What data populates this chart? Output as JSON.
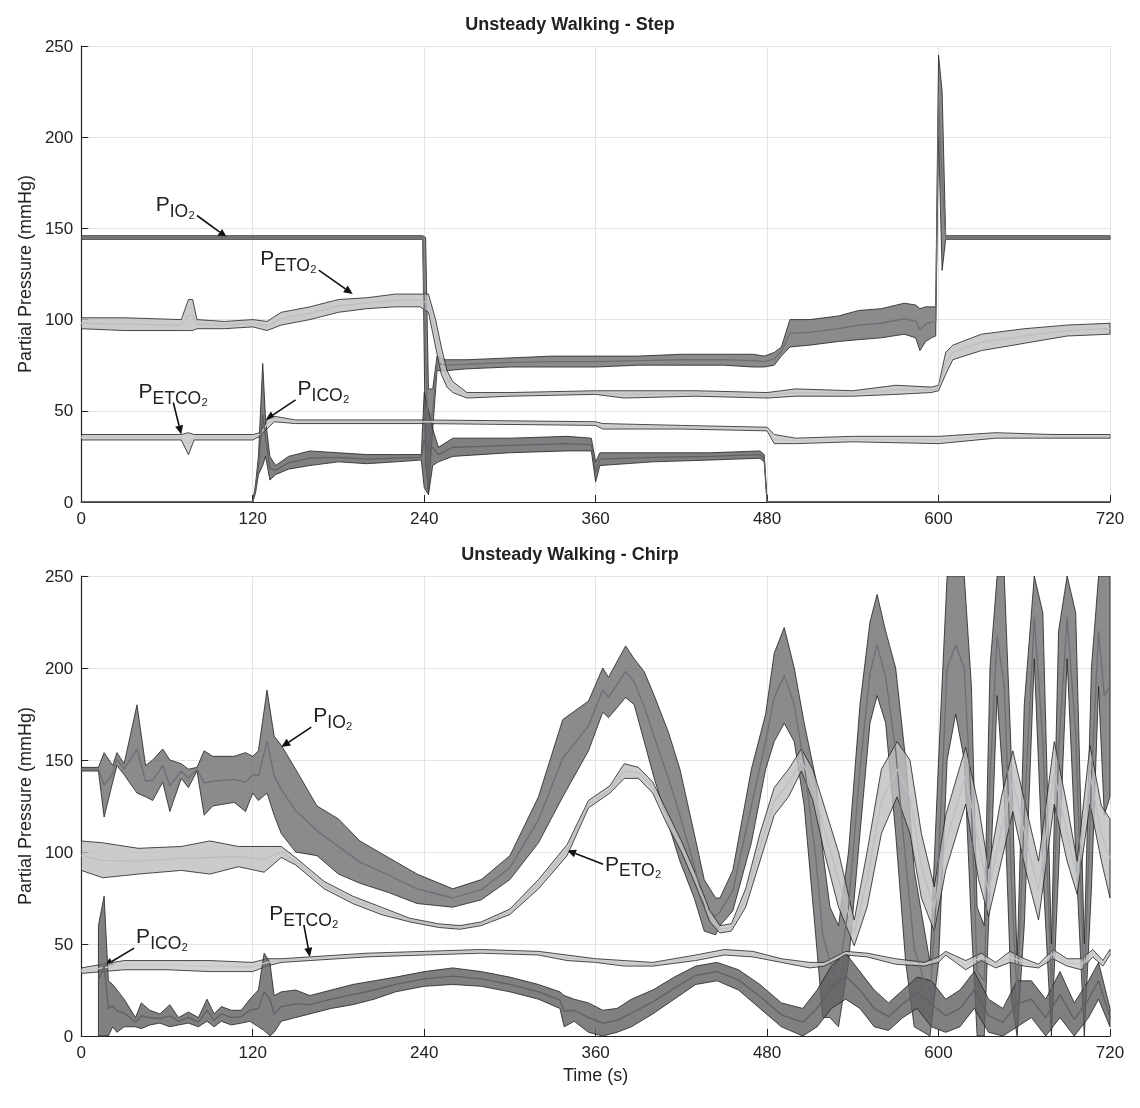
{
  "chart_data": [
    {
      "type": "line",
      "title": "Unsteady Walking - Step",
      "ylabel": "Partial Pressure (mmHg)",
      "xlim": [
        0,
        720
      ],
      "ylim": [
        0,
        250
      ],
      "xticks": [
        0,
        120,
        240,
        360,
        480,
        600,
        720
      ],
      "yticks": [
        0,
        50,
        100,
        150,
        200,
        250
      ],
      "grid": true,
      "annotations": [
        {
          "text": "P$_{IO₂}$",
          "x": 102,
          "y": 145
        },
        {
          "text": "P$_{ETO₂}$",
          "x": 190,
          "y": 114
        },
        {
          "text": "P$_{ETCO₂}$",
          "x": 70,
          "y": 37
        },
        {
          "text": "P$_{ICO₂}$",
          "x": 129,
          "y": 45
        }
      ],
      "series": [
        {
          "color": "#6d6e71",
          "x": [
            0,
            239,
            241,
            243,
            246,
            249,
            255,
            270,
            300,
            330,
            360,
            390,
            420,
            450,
            470,
            478,
            485,
            490,
            496,
            510,
            530,
            544,
            560,
            576,
            584,
            587,
            591,
            595,
            598,
            600,
            602.5,
            605,
            720
          ],
          "values": [
            145,
            145,
            82.5,
            33.5,
            51,
            76,
            75,
            75.5,
            76.5,
            77,
            77,
            77.5,
            78,
            78,
            77.5,
            77,
            78.5,
            82.5,
            92.5,
            93,
            95,
            97,
            98,
            100.5,
            99,
            94.5,
            97.5,
            98.5,
            99,
            222.5,
            176,
            145,
            145
          ],
          "lower": [
            144,
            144,
            20,
            5,
            40,
            72,
            72,
            73,
            74,
            74,
            74,
            75,
            75,
            75,
            74,
            74,
            75,
            80,
            85,
            86,
            88,
            89,
            90,
            92,
            90,
            83,
            88,
            90,
            91,
            200,
            127,
            144,
            144
          ],
          "upper": [
            146,
            146,
            145,
            62,
            62,
            80,
            78,
            78,
            79,
            80,
            80,
            80,
            81,
            81,
            81,
            80,
            82,
            85,
            100,
            100,
            102,
            105,
            106,
            109,
            108,
            106,
            107,
            107,
            107,
            245,
            225,
            146,
            146
          ]
        },
        {
          "color": "#bcbec0",
          "x": [
            0,
            30,
            70,
            75,
            78,
            81,
            100,
            120,
            130,
            140,
            160,
            180,
            200,
            220,
            237,
            243,
            248,
            252,
            256,
            260,
            270,
            300,
            360,
            380,
            430,
            480,
            500,
            540,
            570,
            595,
            600,
            605,
            610,
            630,
            660,
            690,
            720
          ],
          "values": [
            98,
            97.5,
            97,
            102.5,
            102.5,
            97.5,
            97,
            98,
            96.5,
            100.5,
            103.5,
            107.5,
            109,
            110.5,
            110.5,
            109,
            92.5,
            77.5,
            67.5,
            63,
            58.5,
            59,
            60,
            59,
            59.5,
            58.5,
            60,
            59.5,
            61.5,
            61.5,
            62.5,
            76,
            82,
            87.5,
            91,
            94,
            95
          ],
          "lower": [
            95,
            94,
            94,
            94,
            94,
            95,
            95,
            96,
            94,
            97,
            100,
            104,
            106,
            107,
            107,
            104,
            85,
            70,
            63,
            60,
            57,
            58,
            59,
            57,
            58,
            57,
            58,
            58,
            59,
            60,
            61,
            70,
            78,
            83,
            87,
            91,
            92
          ],
          "upper": [
            101,
            101,
            100,
            111,
            111,
            100,
            99,
            100,
            99,
            104,
            107,
            111,
            112,
            114,
            114,
            114,
            100,
            85,
            72,
            66,
            60,
            60,
            61,
            61,
            61,
            60,
            62,
            61,
            64,
            63,
            64,
            82,
            86,
            92,
            95,
            97,
            98
          ]
        },
        {
          "color": "#c4c6c8",
          "x": [
            0,
            70,
            75,
            79,
            120,
            125,
            130,
            135,
            150,
            240,
            360,
            365,
            420,
            480,
            485,
            500,
            540,
            600,
            640,
            680,
            720
          ],
          "values": [
            35.5,
            35.5,
            32,
            35.5,
            35.5,
            37,
            42.5,
            45.5,
            44,
            44,
            43,
            41.5,
            41,
            40,
            34.5,
            33.5,
            34.5,
            34,
            36.5,
            36,
            36
          ],
          "lower": [
            34,
            34,
            26,
            34,
            34,
            36,
            40,
            44,
            43,
            43,
            42,
            40,
            40,
            39,
            32,
            32,
            33,
            32,
            35,
            35,
            35
          ],
          "upper": [
            37,
            37,
            38,
            37,
            37,
            38,
            45,
            47,
            45,
            45,
            44,
            43,
            42,
            41,
            37,
            35,
            36,
            36,
            38,
            37,
            37
          ]
        },
        {
          "color": "#5f6063",
          "x": [
            0,
            120,
            122,
            124,
            127,
            129,
            132,
            136,
            145,
            160,
            180,
            200,
            220,
            238,
            240,
            243,
            246,
            250,
            260,
            300,
            340,
            357,
            360,
            363,
            400,
            440,
            475,
            478,
            480,
            720
          ],
          "values": [
            0,
            0,
            7.5,
            20,
            48,
            35,
            18.5,
            17.5,
            21.5,
            24,
            24.5,
            23.5,
            24,
            24.5,
            34,
            27,
            30,
            26,
            30,
            31,
            32,
            31.5,
            16.5,
            23.5,
            24.5,
            25,
            26,
            24,
            0,
            0
          ],
          "lower": [
            0,
            0,
            5,
            15,
            20,
            25,
            12,
            15,
            18,
            20,
            22,
            21,
            22,
            23,
            8,
            4,
            20,
            22,
            25,
            27,
            28,
            28,
            11,
            20,
            22,
            23,
            24,
            22,
            0,
            0
          ],
          "upper": [
            0,
            0,
            10,
            25,
            76,
            45,
            25,
            20,
            25,
            28,
            27,
            26,
            26,
            26,
            60,
            50,
            40,
            30,
            35,
            35,
            36,
            35,
            22,
            27,
            27,
            27,
            28,
            26,
            0,
            0
          ]
        }
      ]
    },
    {
      "type": "line",
      "title": "Unsteady Walking - Chirp",
      "xlabel": "Time (s)",
      "ylabel": "Partial Pressure (mmHg)",
      "xlim": [
        0,
        720
      ],
      "ylim": [
        0,
        250
      ],
      "xticks": [
        0,
        120,
        240,
        360,
        480,
        600,
        720
      ],
      "yticks": [
        0,
        50,
        100,
        150,
        200,
        250
      ],
      "grid": true,
      "annotations": [
        {
          "text": "P$_{IO₂}$",
          "x": 140,
          "y": 157
        },
        {
          "text": "P$_{ICO₂}$",
          "x": 16,
          "y": 38
        },
        {
          "text": "P$_{ETCO₂}$",
          "x": 160,
          "y": 43
        },
        {
          "text": "P$_{ETO₂}$",
          "x": 340,
          "y": 101
        }
      ],
      "series": [
        {
          "color": "#6d6e71",
          "x": [
            0,
            12,
            16,
            22,
            25,
            30,
            39,
            45,
            50,
            57,
            62,
            70,
            75,
            81,
            86,
            92,
            107,
            115,
            120,
            124,
            130,
            135,
            140,
            150,
            165,
            180,
            195,
            215,
            235,
            260,
            280,
            300,
            320,
            337,
            355,
            365,
            369,
            381,
            387,
            394,
            401,
            411,
            419,
            429,
            436,
            444,
            447,
            456,
            469,
            479,
            485,
            492,
            499,
            506,
            514,
            519,
            524,
            530,
            537,
            545,
            552,
            557,
            563,
            570,
            577,
            583,
            594,
            600,
            606,
            612,
            618,
            623,
            627,
            632,
            636,
            641,
            646,
            651,
            655,
            660,
            667,
            673,
            679,
            684,
            690,
            696,
            702,
            707,
            712,
            716,
            720
          ],
          "values": [
            145,
            145,
            136.5,
            142.5,
            150.5,
            145,
            156,
            138.5,
            139,
            147,
            136,
            144,
            140,
            145,
            137.5,
            138.5,
            139.5,
            138,
            142,
            141.5,
            160,
            141.5,
            134,
            122.5,
            111.5,
            103,
            94.5,
            87.5,
            80,
            75,
            79.5,
            91.5,
            117.5,
            151,
            168.5,
            188,
            184,
            198,
            192.5,
            179,
            162.5,
            140,
            120,
            92.5,
            71,
            65,
            67.5,
            79,
            125,
            160,
            184,
            196,
            180,
            147.5,
            97.5,
            55,
            40,
            32.5,
            70,
            145,
            197.5,
            212.5,
            195,
            155,
            95,
            47.5,
            20,
            95,
            200,
            212.5,
            200,
            125,
            35,
            30,
            140,
            217.5,
            190,
            85,
            20,
            120,
            227.5,
            160,
            25,
            155,
            227.5,
            165,
            25,
            140,
            220,
            185,
            190
          ],
          "lower": [
            144,
            144,
            119,
            138,
            147,
            142,
            132,
            130,
            128,
            138,
            122,
            140,
            135,
            144,
            120,
            125,
            127,
            122,
            132,
            128,
            132,
            120,
            110,
            100,
            98,
            88,
            83,
            78,
            72,
            70,
            74,
            85,
            105,
            130,
            155,
            176,
            173,
            184,
            180,
            160,
            140,
            115,
            95,
            75,
            57,
            55,
            60,
            68,
            105,
            145,
            160,
            170,
            160,
            125,
            55,
            10,
            10,
            5,
            40,
            110,
            170,
            185,
            170,
            110,
            40,
            5,
            0,
            40,
            150,
            175,
            150,
            60,
            0,
            0,
            80,
            185,
            130,
            20,
            0,
            60,
            205,
            90,
            0,
            90,
            205,
            100,
            0,
            80,
            190,
            120,
            130
          ],
          "upper": [
            146,
            146,
            154,
            147,
            154,
            148,
            180,
            147,
            150,
            156,
            150,
            148,
            145,
            146,
            155,
            152,
            152,
            154,
            152,
            155,
            188,
            163,
            158,
            145,
            125,
            118,
            106,
            97,
            88,
            80,
            85,
            98,
            130,
            172,
            182,
            200,
            195,
            212,
            205,
            198,
            185,
            165,
            145,
            110,
            85,
            75,
            75,
            90,
            145,
            175,
            208,
            222,
            200,
            170,
            140,
            100,
            70,
            60,
            100,
            180,
            225,
            240,
            220,
            200,
            150,
            90,
            40,
            150,
            250,
            250,
            250,
            190,
            70,
            60,
            200,
            250,
            250,
            150,
            40,
            180,
            250,
            230,
            50,
            220,
            250,
            230,
            50,
            200,
            250,
            250,
            250
          ]
        },
        {
          "color": "#bcbec0",
          "x": [
            0,
            15,
            40,
            70,
            90,
            110,
            128,
            140,
            150,
            170,
            190,
            210,
            230,
            250,
            265,
            280,
            300,
            320,
            340,
            355,
            370,
            380,
            390,
            400,
            410,
            420,
            430,
            440,
            447,
            455,
            465,
            475,
            485,
            495,
            504,
            512,
            520,
            530,
            541,
            550,
            560,
            571,
            580,
            588,
            597,
            605,
            619,
            628,
            635,
            644,
            652,
            661,
            670,
            681,
            690,
            697,
            706,
            714,
            720
          ],
          "values": [
            98,
            95.5,
            95,
            96.5,
            97,
            97.5,
            96,
            100,
            95,
            82,
            74,
            68,
            63,
            60,
            59,
            61,
            67.5,
            82.5,
            101,
            126,
            134,
            144,
            143,
            135,
            118.5,
            103,
            85,
            65,
            58,
            59,
            75,
            102.5,
            127.5,
            137.5,
            150,
            136.5,
            112.5,
            85,
            56,
            85,
            127.5,
            145,
            130,
            92.5,
            69,
            105,
            141.5,
            105,
            78,
            112.5,
            138.5,
            107.5,
            79,
            143,
            110,
            86,
            142,
            110,
            96.5
          ],
          "lower": [
            90,
            86,
            88,
            90,
            88,
            92,
            89,
            97,
            93,
            80,
            72,
            66,
            62,
            59,
            58,
            60,
            66,
            80,
            98,
            124,
            132,
            140,
            140,
            132,
            115,
            100,
            82,
            62,
            56,
            57,
            70,
            95,
            120,
            130,
            144,
            128,
            100,
            70,
            49,
            70,
            110,
            130,
            110,
            75,
            57,
            90,
            126,
            85,
            65,
            95,
            122,
            90,
            63,
            126,
            95,
            77,
            126,
            95,
            75
          ],
          "upper": [
            106,
            105,
            102,
            103,
            106,
            103,
            103,
            103,
            97,
            84,
            76,
            70,
            64,
            61,
            60,
            62,
            69,
            85,
            104,
            128,
            136,
            148,
            146,
            138,
            122,
            106,
            88,
            68,
            60,
            61,
            80,
            110,
            135,
            145,
            156,
            145,
            125,
            100,
            63,
            100,
            145,
            160,
            150,
            110,
            81,
            120,
            157,
            125,
            91,
            130,
            155,
            125,
            95,
            160,
            125,
            95,
            158,
            125,
            118
          ]
        },
        {
          "color": "#c4c6c8",
          "x": [
            0,
            15,
            30,
            60,
            90,
            120,
            130,
            140,
            160,
            200,
            240,
            280,
            320,
            340,
            360,
            380,
            400,
            430,
            450,
            470,
            490,
            510,
            520,
            535,
            550,
            570,
            590,
            600,
            605,
            619,
            630,
            640,
            650,
            660,
            670,
            680,
            690,
            700,
            708,
            715,
            720
          ],
          "values": [
            35.5,
            37,
            38.5,
            38.5,
            38,
            37.5,
            40,
            41,
            42,
            44,
            45,
            46,
            45,
            42.5,
            41,
            39.5,
            39,
            42.5,
            45.5,
            44.5,
            41,
            38.5,
            39,
            45,
            44,
            40.5,
            39,
            41.5,
            45,
            38.5,
            43,
            38.5,
            43,
            40,
            38,
            44.5,
            40,
            39,
            45,
            39.5,
            45.5
          ],
          "lower": [
            34,
            35,
            36,
            36,
            35,
            35,
            38,
            40,
            41,
            43,
            44,
            45,
            44,
            41,
            40,
            38,
            38,
            41,
            44,
            43,
            40,
            37,
            38,
            44,
            43,
            39,
            38,
            40,
            44,
            36,
            41,
            37,
            40,
            38,
            37,
            42,
            38,
            36,
            43,
            38,
            44
          ],
          "upper": [
            37,
            39,
            41,
            41,
            41,
            40,
            42,
            42,
            43,
            45,
            46,
            47,
            46,
            44,
            42,
            41,
            40,
            44,
            47,
            46,
            42,
            40,
            40,
            46,
            45,
            42,
            40,
            43,
            46,
            41,
            45,
            40,
            46,
            42,
            39,
            47,
            42,
            42,
            47,
            41,
            47
          ]
        },
        {
          "color": "#5f6063",
          "x": [
            12,
            16,
            19,
            22,
            25,
            30,
            38,
            42,
            48,
            55,
            62,
            68,
            75,
            82,
            88,
            93,
            98,
            105,
            112,
            118,
            124,
            128,
            132,
            135,
            140,
            150,
            160,
            175,
            190,
            205,
            220,
            240,
            260,
            280,
            300,
            320,
            335,
            338,
            345,
            355,
            365,
            375,
            385,
            400,
            415,
            430,
            445,
            460,
            475,
            490,
            505,
            515,
            525,
            535,
            545,
            555,
            565,
            575,
            585,
            595,
            605,
            615,
            625,
            635,
            645,
            655,
            665,
            675,
            685,
            695,
            705,
            712,
            720
          ],
          "values": [
            30,
            38,
            15,
            16.5,
            13.5,
            12.5,
            7.5,
            11,
            10,
            9.5,
            11,
            8,
            10,
            7.5,
            14,
            8.5,
            12,
            10,
            10.5,
            14,
            15,
            24,
            20,
            12,
            16,
            17.5,
            17,
            20,
            22.5,
            25,
            28,
            31,
            32.5,
            31,
            28,
            24,
            19.5,
            13.5,
            14,
            10,
            7,
            8.5,
            12.5,
            18.5,
            26,
            33,
            35,
            30.5,
            21.5,
            11.5,
            7.5,
            15,
            26.5,
            32.5,
            25,
            15,
            10.5,
            17.5,
            23.5,
            17.5,
            11,
            15,
            25,
            11,
            7.5,
            17.5,
            20,
            10,
            22.5,
            9,
            20,
            30,
            10
          ],
          "lower": [
            0,
            0,
            0,
            5,
            2,
            5,
            5,
            4,
            6,
            7,
            5,
            6,
            7,
            5,
            8,
            5,
            8,
            6,
            7,
            8,
            5,
            3,
            0,
            2,
            8,
            10,
            12,
            15,
            17,
            20,
            24,
            27,
            28,
            27,
            24,
            20,
            15,
            5,
            8,
            2,
            0,
            2,
            5,
            12,
            20,
            28,
            30,
            25,
            15,
            5,
            0,
            5,
            15,
            20,
            15,
            5,
            3,
            10,
            15,
            5,
            2,
            5,
            15,
            2,
            0,
            5,
            10,
            0,
            10,
            0,
            10,
            20,
            5
          ],
          "upper": [
            60,
            76,
            30,
            28,
            25,
            20,
            10,
            18,
            14,
            12,
            17,
            10,
            13,
            10,
            20,
            12,
            16,
            14,
            14,
            20,
            25,
            45,
            40,
            22,
            24,
            25,
            22,
            25,
            28,
            30,
            32,
            35,
            37,
            35,
            32,
            28,
            24,
            22,
            20,
            18,
            14,
            15,
            20,
            25,
            32,
            38,
            40,
            36,
            28,
            18,
            15,
            25,
            38,
            45,
            35,
            25,
            18,
            25,
            32,
            30,
            20,
            25,
            35,
            20,
            15,
            30,
            30,
            20,
            35,
            18,
            30,
            40,
            15
          ]
        }
      ]
    }
  ]
}
